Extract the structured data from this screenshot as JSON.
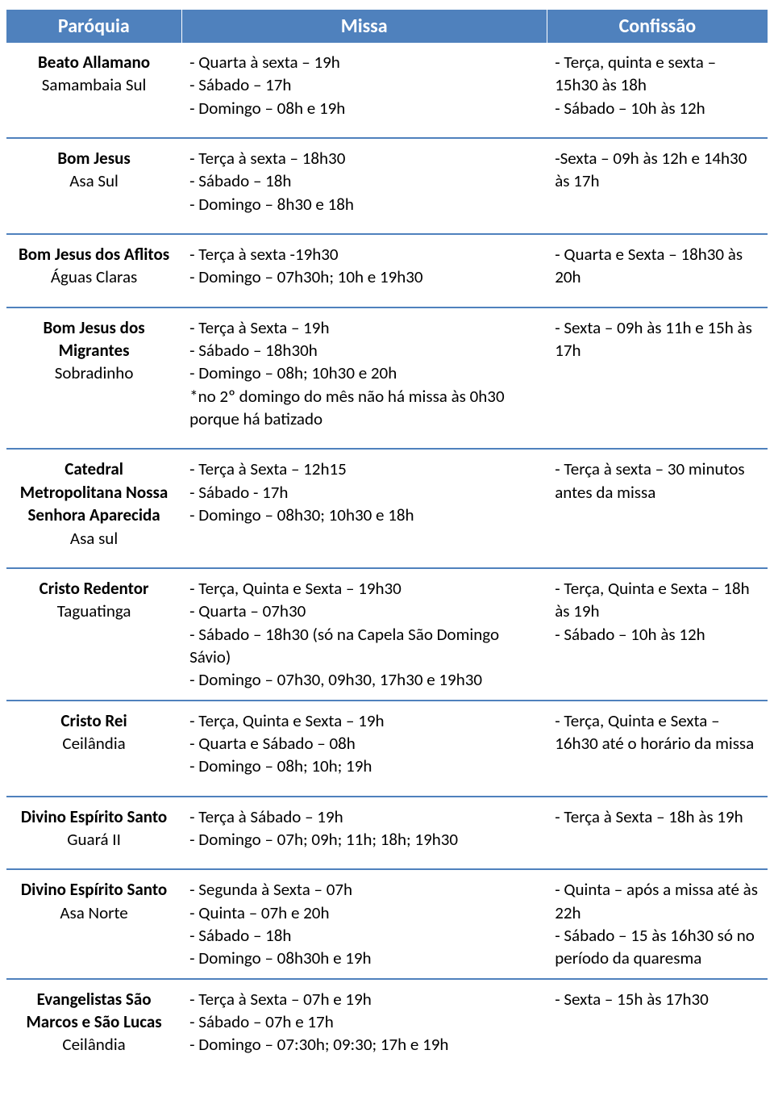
{
  "headers": {
    "paroquia": "Paróquia",
    "missa": "Missa",
    "confissao": "Confissão"
  },
  "rows": [
    {
      "nome": "Beato Allamano",
      "local": "Samambaia Sul",
      "missa": "- Quarta à sexta – 19h\n- Sábado – 17h\n- Domingo – 08h e 19h",
      "confissao": "- Terça, quinta e sexta – 15h30 às 18h\n- Sábado – 10h às 12h"
    },
    {
      "nome": "Bom Jesus",
      "local": "Asa Sul",
      "missa": "- Terça à sexta – 18h30\n- Sábado – 18h\n- Domingo – 8h30 e 18h",
      "confissao": "-Sexta – 09h às 12h e 14h30 às 17h"
    },
    {
      "nome": "Bom Jesus dos Aflitos",
      "local": "Águas Claras",
      "missa": "- Terça à sexta -19h30\n- Domingo – 07h30h; 10h e 19h30",
      "confissao": "- Quarta e Sexta – 18h30 às 20h"
    },
    {
      "nome": "Bom Jesus dos Migrantes",
      "local": "Sobradinho",
      "missa": "- Terça à Sexta – 19h\n- Sábado – 18h30h\n- Domingo – 08h; 10h30 e 20h\n*no 2º domingo do mês não há missa às 0h30 porque há batizado",
      "confissao": "- Sexta – 09h às 11h e 15h às 17h"
    },
    {
      "nome": "Catedral Metropolitana Nossa Senhora Aparecida",
      "local": "Asa sul",
      "missa": "- Terça à Sexta – 12h15\n- Sábado - 17h\n- Domingo – 08h30; 10h30 e 18h",
      "confissao": "- Terça à sexta – 30 minutos antes da missa"
    },
    {
      "nome": "Cristo Redentor",
      "local": "Taguatinga",
      "missa": "- Terça, Quinta e Sexta – 19h30\n- Quarta – 07h30\n- Sábado – 18h30 (só na Capela São Domingo Sávio)\n- Domingo – 07h30, 09h30, 17h30 e 19h30",
      "confissao": "- Terça, Quinta e Sexta – 18h às 19h\n- Sábado – 10h às 12h",
      "tight": true
    },
    {
      "nome": "Cristo Rei",
      "local": "Ceilândia",
      "missa": "- Terça, Quinta e Sexta – 19h\n- Quarta e Sábado – 08h\n- Domingo – 08h; 10h; 19h",
      "confissao": "- Terça, Quinta e Sexta – 16h30 até o horário da missa"
    },
    {
      "nome": "Divino Espírito Santo",
      "local": "Guará II",
      "missa": "- Terça à Sábado – 19h\n- Domingo – 07h; 09h; 11h; 18h; 19h30",
      "confissao": "- Terça à Sexta – 18h às 19h"
    },
    {
      "nome": "Divino Espírito Santo",
      "local": "Asa Norte",
      "missa": "- Segunda à Sexta – 07h\n- Quinta – 07h e 20h\n- Sábado – 18h\n- Domingo – 08h30h e 19h",
      "confissao": "- Quinta – após a missa até às 22h\n- Sábado – 15 às 16h30 só no período da quaresma",
      "tight": true
    },
    {
      "nome": "Evangelistas São Marcos e São Lucas",
      "local": "Ceilândia",
      "missa": "- Terça à Sexta – 07h e 19h\n- Sábado – 07h e 17h\n- Domingo – 07:30h; 09:30; 17h e 19h",
      "confissao": "- Sexta – 15h às 17h30"
    }
  ]
}
